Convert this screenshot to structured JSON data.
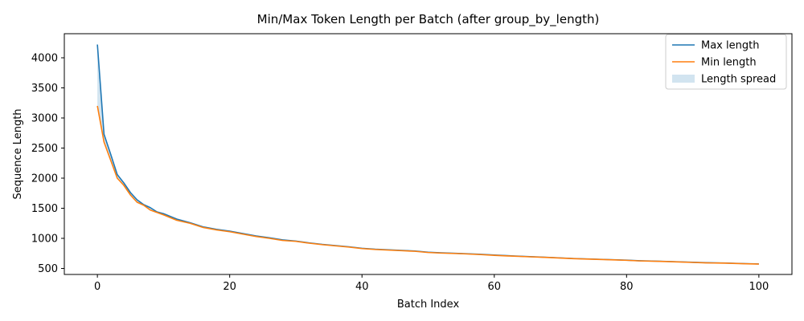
{
  "chart_data": {
    "type": "line",
    "title": "Min/Max Token Length per Batch (after group_by_length)",
    "xlabel": "Batch Index",
    "ylabel": "Sequence Length",
    "xlim": [
      -5,
      105
    ],
    "ylim": [
      400,
      4400
    ],
    "xticks": [
      0,
      20,
      40,
      60,
      80,
      100
    ],
    "yticks": [
      500,
      1000,
      1500,
      2000,
      2500,
      3000,
      3500,
      4000
    ],
    "grid": false,
    "legend_position": "top-right",
    "x": [
      0,
      1,
      2,
      3,
      4,
      5,
      6,
      7,
      8,
      9,
      10,
      12,
      14,
      16,
      18,
      20,
      22,
      24,
      26,
      28,
      30,
      32,
      34,
      36,
      38,
      40,
      42,
      44,
      46,
      48,
      50,
      52,
      55,
      58,
      60,
      62,
      65,
      68,
      70,
      72,
      75,
      78,
      80,
      82,
      85,
      88,
      90,
      92,
      95,
      98,
      100
    ],
    "series": [
      {
        "name": "Max length",
        "color": "#1f77b4",
        "values": [
          4220,
          2730,
          2400,
          2060,
          1920,
          1760,
          1640,
          1560,
          1510,
          1440,
          1410,
          1320,
          1260,
          1190,
          1150,
          1120,
          1080,
          1040,
          1010,
          975,
          955,
          925,
          900,
          880,
          860,
          835,
          820,
          810,
          800,
          790,
          770,
          760,
          748,
          735,
          722,
          712,
          698,
          685,
          675,
          665,
          655,
          645,
          638,
          628,
          620,
          610,
          602,
          596,
          590,
          580,
          575
        ]
      },
      {
        "name": "Min length",
        "color": "#ff7f0e",
        "values": [
          3200,
          2600,
          2300,
          2000,
          1880,
          1720,
          1600,
          1550,
          1470,
          1430,
          1390,
          1300,
          1250,
          1180,
          1140,
          1110,
          1070,
          1030,
          1000,
          965,
          950,
          920,
          895,
          875,
          855,
          830,
          815,
          805,
          795,
          785,
          765,
          755,
          745,
          730,
          718,
          708,
          695,
          682,
          672,
          662,
          652,
          642,
          635,
          625,
          617,
          607,
          600,
          593,
          587,
          577,
          572
        ]
      }
    ],
    "fill_between": {
      "name": "Length spread",
      "color": "#1f77b4",
      "opacity": 0.2
    }
  }
}
